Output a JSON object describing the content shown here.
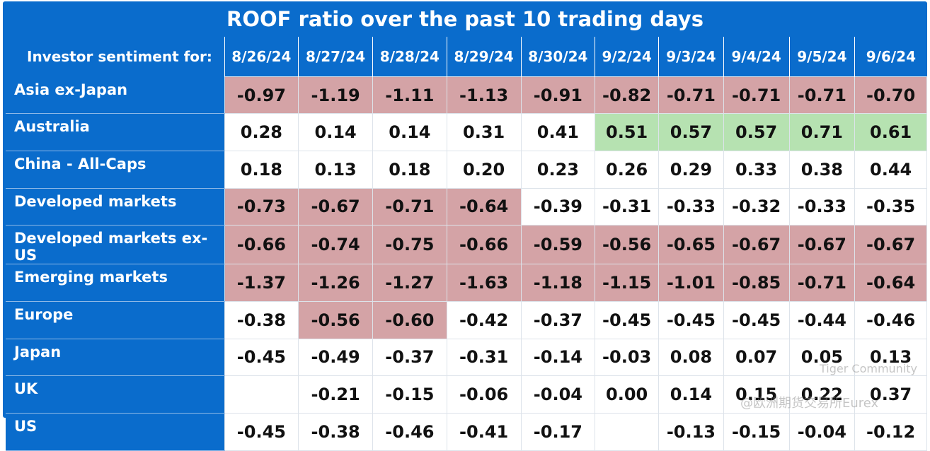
{
  "title": "ROOF ratio over the past 10 trading days",
  "table": {
    "row_header": "Investor sentiment for:",
    "columns": [
      "8/26/24",
      "8/27/24",
      "8/28/24",
      "8/29/24",
      "8/30/24",
      "9/2/24",
      "9/3/24",
      "9/4/24",
      "9/5/24",
      "9/6/24"
    ],
    "rows": [
      {
        "name": "Asia ex-Japan",
        "values": [
          "-0.97",
          "-1.19",
          "-1.11",
          "-1.13",
          "-0.91",
          "-0.82",
          "-0.71",
          "-0.71",
          "-0.71",
          "-0.70"
        ]
      },
      {
        "name": "Australia",
        "values": [
          "0.28",
          "0.14",
          "0.14",
          "0.31",
          "0.41",
          "0.51",
          "0.57",
          "0.57",
          "0.71",
          "0.61"
        ]
      },
      {
        "name": "China - All-Caps",
        "values": [
          "0.18",
          "0.13",
          "0.18",
          "0.20",
          "0.23",
          "0.26",
          "0.29",
          "0.33",
          "0.38",
          "0.44"
        ]
      },
      {
        "name": "Developed markets",
        "values": [
          "-0.73",
          "-0.67",
          "-0.71",
          "-0.64",
          "-0.39",
          "-0.31",
          "-0.33",
          "-0.32",
          "-0.33",
          "-0.35"
        ]
      },
      {
        "name": "Developed markets ex-US",
        "values": [
          "-0.66",
          "-0.74",
          "-0.75",
          "-0.66",
          "-0.59",
          "-0.56",
          "-0.65",
          "-0.67",
          "-0.67",
          "-0.67"
        ]
      },
      {
        "name": "Emerging markets",
        "values": [
          "-1.37",
          "-1.26",
          "-1.27",
          "-1.63",
          "-1.18",
          "-1.15",
          "-1.01",
          "-0.85",
          "-0.71",
          "-0.64"
        ]
      },
      {
        "name": "Europe",
        "values": [
          "-0.38",
          "-0.56",
          "-0.60",
          "-0.42",
          "-0.37",
          "-0.45",
          "-0.45",
          "-0.45",
          "-0.44",
          "-0.46"
        ]
      },
      {
        "name": "Japan",
        "values": [
          "-0.45",
          "-0.49",
          "-0.37",
          "-0.31",
          "-0.14",
          "-0.03",
          "0.08",
          "0.07",
          "0.05",
          "0.13"
        ]
      },
      {
        "name": "UK",
        "values": [
          null,
          "-0.21",
          "-0.15",
          "-0.06",
          "-0.04",
          "0.00",
          "0.14",
          "0.15",
          "0.22",
          "0.37"
        ]
      },
      {
        "name": "US",
        "values": [
          "-0.45",
          "-0.38",
          "-0.46",
          "-0.41",
          "-0.17",
          null,
          "-0.13",
          "-0.15",
          "-0.04",
          "-0.12"
        ]
      }
    ]
  },
  "watermarks": [
    "Tiger Community",
    "@欧洲期货交易所Eurex"
  ]
}
